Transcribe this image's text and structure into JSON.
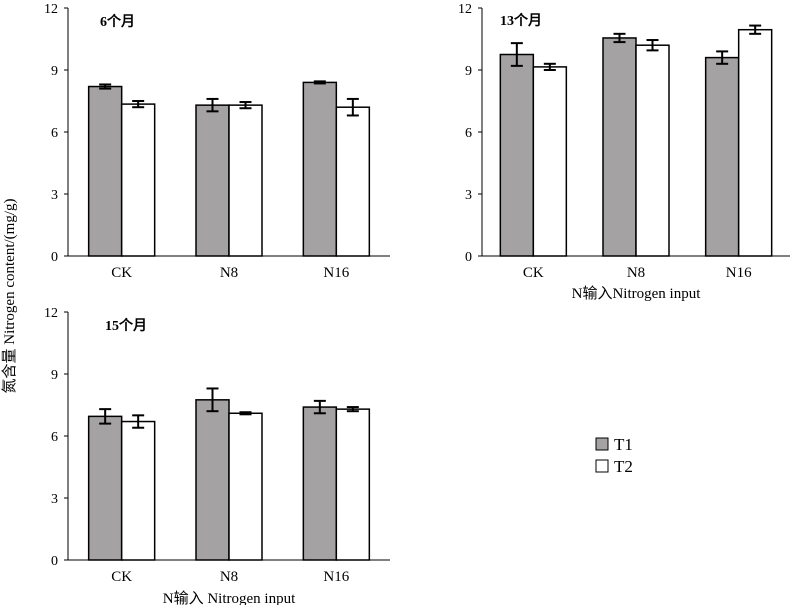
{
  "figure": {
    "ylabel": "氮含量 Nitrogen content/(mg/g)",
    "legend": {
      "placement": "right-middle",
      "items": [
        {
          "name": "T1",
          "color": "#a5a2a3"
        },
        {
          "name": "T2",
          "color": "#ffffff"
        }
      ]
    }
  },
  "chart_data": [
    {
      "type": "bar",
      "title": "6个月",
      "xlabel": "",
      "categories": [
        "CK",
        "N8",
        "N16"
      ],
      "ylim": [
        0,
        12
      ],
      "yticks": [
        0,
        3,
        6,
        9,
        12
      ],
      "series": [
        {
          "name": "T1",
          "color": "#a5a2a3",
          "values": [
            8.2,
            7.3,
            8.4
          ],
          "errors": [
            0.1,
            0.3,
            0.05
          ]
        },
        {
          "name": "T2",
          "color": "#ffffff",
          "values": [
            7.35,
            7.3,
            7.2
          ],
          "errors": [
            0.15,
            0.15,
            0.4
          ]
        }
      ]
    },
    {
      "type": "bar",
      "title": "13个月",
      "xlabel": "N输入Nitrogen input",
      "categories": [
        "CK",
        "N8",
        "N16"
      ],
      "ylim": [
        0,
        12
      ],
      "yticks": [
        0,
        3,
        6,
        9,
        12
      ],
      "series": [
        {
          "name": "T1",
          "color": "#a5a2a3",
          "values": [
            9.75,
            10.55,
            9.6
          ],
          "errors": [
            0.55,
            0.2,
            0.3
          ]
        },
        {
          "name": "T2",
          "color": "#ffffff",
          "values": [
            9.15,
            10.2,
            10.95
          ],
          "errors": [
            0.15,
            0.25,
            0.2
          ]
        }
      ]
    },
    {
      "type": "bar",
      "title": "15个月",
      "xlabel": "N输入 Nitrogen input",
      "categories": [
        "CK",
        "N8",
        "N16"
      ],
      "ylim": [
        0,
        12
      ],
      "yticks": [
        0,
        3,
        6,
        9,
        12
      ],
      "series": [
        {
          "name": "T1",
          "color": "#a5a2a3",
          "values": [
            6.95,
            7.75,
            7.4
          ],
          "errors": [
            0.35,
            0.55,
            0.3
          ]
        },
        {
          "name": "T2",
          "color": "#ffffff",
          "values": [
            6.7,
            7.1,
            7.3
          ],
          "errors": [
            0.3,
            0.05,
            0.1
          ]
        }
      ]
    }
  ]
}
